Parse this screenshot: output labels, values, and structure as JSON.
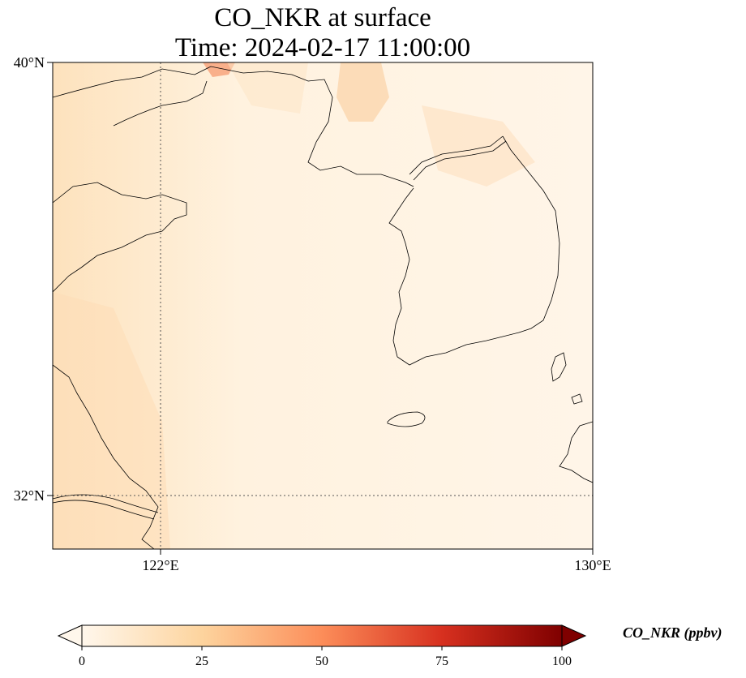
{
  "title": {
    "line1": "CO_NKR at surface",
    "line2": "Time: 2024-02-17 11:00:00"
  },
  "map": {
    "lat_range": [
      31,
      40
    ],
    "lon_range": [
      120,
      130
    ],
    "lat_ticks": [
      {
        "value": 40,
        "label": "40°N"
      },
      {
        "value": 32,
        "label": "32°N"
      }
    ],
    "lon_ticks": [
      {
        "value": 122,
        "label": "122°E"
      },
      {
        "value": 130,
        "label": "130°E"
      }
    ],
    "gridlines": {
      "lat": [
        32
      ],
      "lon": [
        122
      ]
    },
    "field_color": "#fff0dc",
    "coastline_color": "#000000"
  },
  "colorbar": {
    "label": "CO_NKR (ppbv)",
    "min": 0,
    "max": 100,
    "ticks": [
      {
        "value": 0,
        "label": "0"
      },
      {
        "value": 25,
        "label": "25"
      },
      {
        "value": 50,
        "label": "50"
      },
      {
        "value": 75,
        "label": "75"
      },
      {
        "value": 100,
        "label": "100"
      }
    ],
    "extend": "both",
    "colormap": "OrRd",
    "stops": [
      "#fff7ec",
      "#fdd49e",
      "#fc8d59",
      "#d7301f",
      "#7f0000"
    ]
  }
}
